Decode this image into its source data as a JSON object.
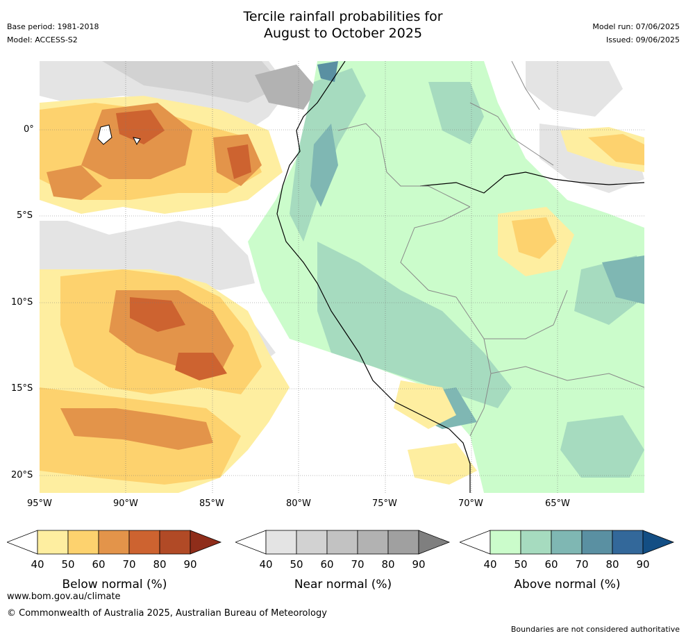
{
  "header": {
    "title_line1": "Tercile rainfall probabilities for",
    "title_line2": "August to October 2025",
    "base_period": "Base period: 1981-2018",
    "model": "Model: ACCESS-S2",
    "model_run": "Model run: 07/06/2025",
    "issued": "Issued: 09/06/2025"
  },
  "axes": {
    "y_ticks": [
      "0°",
      "5°S",
      "10°S",
      "15°S",
      "20°S"
    ],
    "x_ticks": [
      "95°W",
      "90°W",
      "85°W",
      "80°W",
      "75°W",
      "70°W",
      "65°W"
    ]
  },
  "colorbars": [
    {
      "label": "Below normal (%)",
      "ticks": [
        "40",
        "50",
        "60",
        "70",
        "80",
        "90"
      ],
      "colors": [
        "#ffffff",
        "#feeea0",
        "#fdd26e",
        "#e3944a",
        "#cd6330",
        "#b14a26",
        "#8f2d1a"
      ]
    },
    {
      "label": "Near normal (%)",
      "ticks": [
        "40",
        "50",
        "60",
        "70",
        "80",
        "90"
      ],
      "colors": [
        "#ffffff",
        "#e4e4e4",
        "#d2d2d2",
        "#c2c2c2",
        "#b2b2b2",
        "#a0a0a0",
        "#7f7f7f"
      ]
    },
    {
      "label": "Above normal (%)",
      "ticks": [
        "40",
        "50",
        "60",
        "70",
        "80",
        "90"
      ],
      "colors": [
        "#ffffff",
        "#cbfccb",
        "#a6dbbf",
        "#7fb7b3",
        "#5a90a2",
        "#33689a",
        "#134e84"
      ]
    }
  ],
  "footer": {
    "url": "www.bom.gov.au/climate",
    "copyright": "© Commonwealth of Australia 2025, Australian Bureau of Meteorology",
    "disclaimer": "Boundaries are not considered authoritative"
  }
}
